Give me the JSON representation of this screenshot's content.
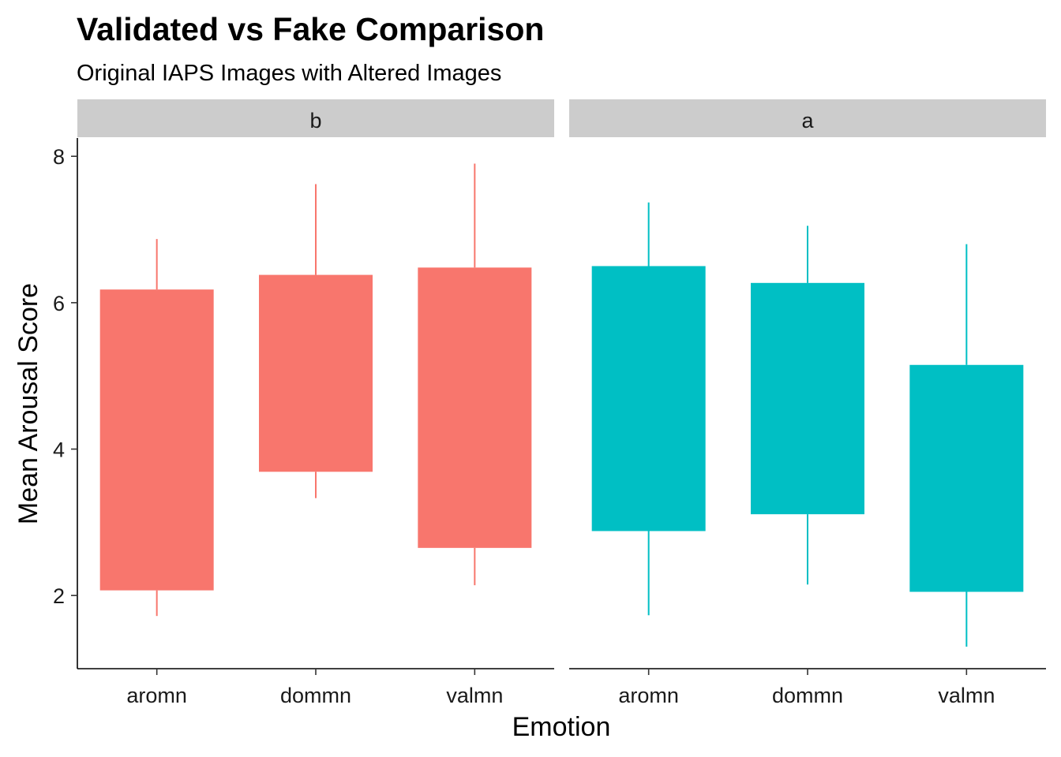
{
  "chart_data": {
    "type": "boxplot",
    "title": "Validated vs Fake Comparison",
    "subtitle": "Original IAPS Images with Altered Images",
    "xlabel": "Emotion",
    "ylabel": "Mean Arousal Score",
    "ylim": [
      1.0,
      8.25
    ],
    "yticks": [
      2,
      4,
      6,
      8
    ],
    "categories": [
      "aromn",
      "dommn",
      "valmn"
    ],
    "legend": "none",
    "grid": false,
    "panels": [
      {
        "label": "b",
        "color": "#F8766D",
        "boxes": [
          {
            "category": "aromn",
            "min": 1.72,
            "q1": 2.07,
            "q3": 6.18,
            "max": 6.87
          },
          {
            "category": "dommn",
            "min": 3.33,
            "q1": 3.69,
            "q3": 6.38,
            "max": 7.62
          },
          {
            "category": "valmn",
            "min": 2.14,
            "q1": 2.65,
            "q3": 6.48,
            "max": 7.9
          }
        ]
      },
      {
        "label": "a",
        "color": "#00BFC4",
        "boxes": [
          {
            "category": "aromn",
            "min": 1.73,
            "q1": 2.88,
            "q3": 6.5,
            "max": 7.37
          },
          {
            "category": "dommn",
            "min": 2.15,
            "q1": 3.11,
            "q3": 6.27,
            "max": 7.05
          },
          {
            "category": "valmn",
            "min": 1.3,
            "q1": 2.05,
            "q3": 5.15,
            "max": 6.8
          }
        ]
      }
    ]
  }
}
